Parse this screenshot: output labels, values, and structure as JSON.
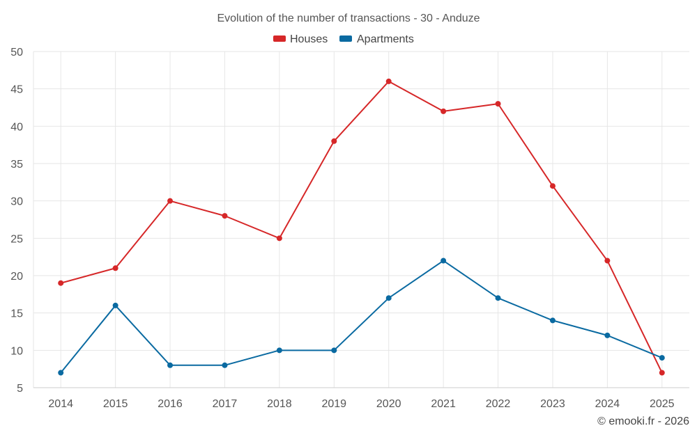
{
  "chart_data": {
    "type": "line",
    "title": "Evolution of the number of transactions - 30 - Anduze",
    "categories": [
      "2014",
      "2015",
      "2016",
      "2017",
      "2018",
      "2019",
      "2020",
      "2021",
      "2022",
      "2023",
      "2024",
      "2025"
    ],
    "series": [
      {
        "name": "Houses",
        "color": "#d62728",
        "values": [
          19,
          21,
          30,
          28,
          25,
          38,
          46,
          42,
          43,
          32,
          22,
          7
        ]
      },
      {
        "name": "Apartments",
        "color": "#0a6aa1",
        "values": [
          7,
          16,
          8,
          8,
          10,
          10,
          17,
          22,
          17,
          14,
          12,
          9
        ]
      }
    ],
    "ylim": [
      5,
      50
    ],
    "yticks": [
      5,
      10,
      15,
      20,
      25,
      30,
      35,
      40,
      45,
      50
    ],
    "xlabel": "",
    "ylabel": "",
    "grid": true,
    "legend": "top-center"
  },
  "credit": "© emooki.fr - 2026"
}
